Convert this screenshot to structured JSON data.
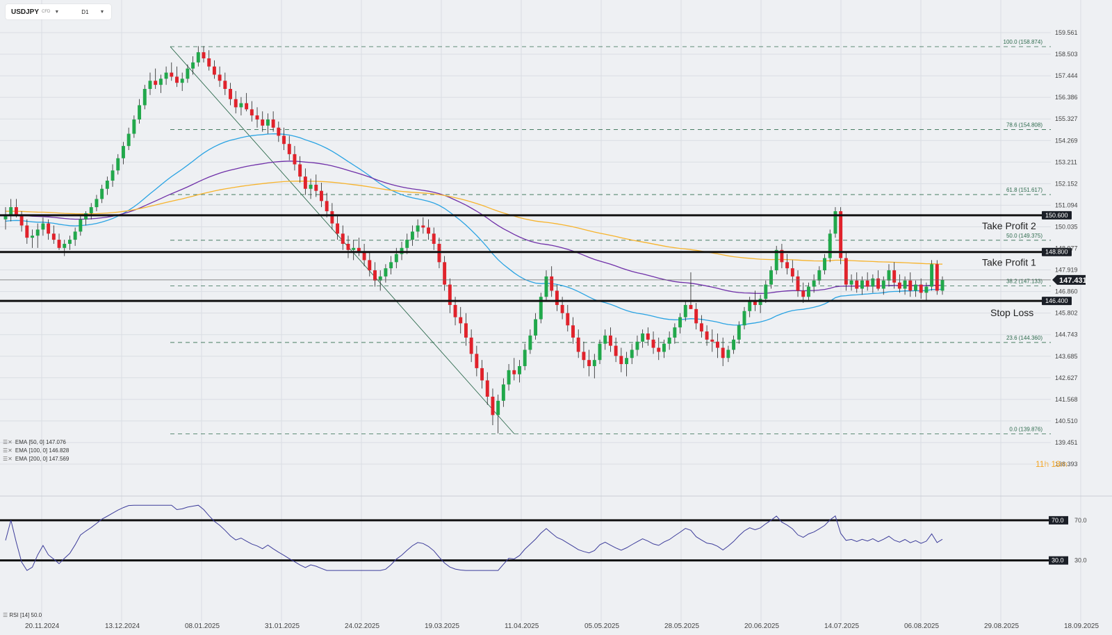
{
  "toolbar": {
    "symbol": "USDJPY",
    "instrument_type": "CFD",
    "timeframe": "D1"
  },
  "colors": {
    "bull": "#21a84b",
    "bear": "#e0222b",
    "ema50": "#29a3e3",
    "ema100": "#6f2fa8",
    "ema200": "#f7b32b",
    "rsi": "#3c3c9a",
    "level_lines": "#111111",
    "fib": "#2e6b4e",
    "price_label_bg": "#1b1f27"
  },
  "chart_data": {
    "type": "candlestick",
    "price_axis_ticks": [
      "159.561",
      "158.503",
      "157.444",
      "156.386",
      "155.327",
      "154.269",
      "153.211",
      "152.152",
      "151.094",
      "150.035",
      "148.977",
      "147.919",
      "146.860",
      "145.802",
      "144.743",
      "143.685",
      "142.627",
      "141.568",
      "140.510",
      "139.451",
      "138.393"
    ],
    "date_axis_ticks": [
      "20.11.2024",
      "13.12.2024",
      "08.01.2025",
      "31.01.2025",
      "24.02.2025",
      "19.03.2025",
      "11.04.2025",
      "05.05.2025",
      "28.05.2025",
      "20.06.2025",
      "14.07.2025",
      "06.08.2025",
      "29.08.2025",
      "18.09.2025"
    ],
    "fibonacci_levels": [
      {
        "label": "100.0 (158.874)",
        "price": 158.874
      },
      {
        "label": "78.6 (154.808)",
        "price": 154.808
      },
      {
        "label": "61.8 (151.617)",
        "price": 151.617
      },
      {
        "label": "50.0 (149.375)",
        "price": 149.375
      },
      {
        "label": "38.2 (147.133)",
        "price": 147.133
      },
      {
        "label": "23.6 (144.360)",
        "price": 144.36
      },
      {
        "label": "0.0 (139.876)",
        "price": 139.876
      }
    ],
    "horizontal_levels": [
      {
        "price": 150.6,
        "label": "150.600",
        "annotation": "Take Profit 2"
      },
      {
        "price": 148.8,
        "label": "148.800",
        "annotation": "Take Profit 1"
      },
      {
        "price": 146.4,
        "label": "146.400",
        "annotation": "Stop Loss"
      }
    ],
    "current_price": {
      "price": 147.431,
      "label": "147.431"
    },
    "indicators": [
      {
        "name": "EMA",
        "params": "[50, 0]",
        "value": "147.076"
      },
      {
        "name": "EMA",
        "params": "[100, 0]",
        "value": "146.828"
      },
      {
        "name": "EMA",
        "params": "[200, 0]",
        "value": "147.569"
      }
    ],
    "rsi": {
      "label": "RSI [14] 50.0",
      "upper": "70.0",
      "lower": "30.0"
    },
    "countdown": {
      "hours": "11",
      "hours_unit": "h",
      "minutes": "18",
      "minutes_unit": "m"
    },
    "candles_ohlc": [
      [
        150.4,
        151.0,
        149.9,
        150.6
      ],
      [
        150.6,
        151.4,
        150.3,
        151.0
      ],
      [
        151.0,
        151.4,
        150.5,
        150.6
      ],
      [
        150.6,
        150.8,
        149.8,
        150.1
      ],
      [
        150.1,
        150.4,
        149.2,
        149.5
      ],
      [
        149.5,
        149.9,
        149.0,
        149.6
      ],
      [
        149.6,
        150.2,
        149.0,
        149.9
      ],
      [
        149.9,
        150.5,
        149.6,
        150.2
      ],
      [
        150.2,
        150.4,
        149.4,
        149.7
      ],
      [
        149.7,
        150.1,
        149.2,
        149.4
      ],
      [
        149.4,
        149.7,
        148.9,
        149.0
      ],
      [
        149.0,
        149.4,
        148.6,
        149.2
      ],
      [
        149.2,
        149.6,
        148.9,
        149.4
      ],
      [
        149.4,
        150.0,
        149.1,
        149.8
      ],
      [
        149.8,
        150.6,
        149.6,
        150.4
      ],
      [
        150.4,
        150.8,
        150.1,
        150.7
      ],
      [
        150.7,
        151.2,
        150.4,
        151.0
      ],
      [
        151.0,
        151.6,
        150.8,
        151.4
      ],
      [
        151.4,
        152.1,
        151.2,
        151.9
      ],
      [
        151.9,
        152.5,
        151.6,
        152.3
      ],
      [
        152.3,
        153.1,
        152.0,
        152.8
      ],
      [
        152.8,
        153.6,
        152.6,
        153.4
      ],
      [
        153.4,
        154.2,
        153.1,
        154.0
      ],
      [
        154.0,
        154.9,
        153.8,
        154.6
      ],
      [
        154.6,
        155.5,
        154.4,
        155.3
      ],
      [
        155.3,
        156.3,
        155.1,
        156.0
      ],
      [
        156.0,
        157.0,
        155.8,
        156.8
      ],
      [
        156.8,
        157.6,
        156.5,
        157.2
      ],
      [
        157.2,
        157.8,
        156.8,
        157.0
      ],
      [
        157.0,
        157.5,
        156.6,
        157.3
      ],
      [
        157.3,
        157.9,
        157.0,
        157.6
      ],
      [
        157.6,
        158.1,
        157.2,
        157.4
      ],
      [
        157.4,
        157.9,
        156.9,
        157.1
      ],
      [
        157.1,
        157.6,
        156.7,
        157.3
      ],
      [
        157.3,
        158.0,
        157.1,
        157.8
      ],
      [
        157.8,
        158.4,
        157.5,
        158.1
      ],
      [
        158.1,
        158.9,
        157.9,
        158.6
      ],
      [
        158.6,
        158.9,
        158.1,
        158.3
      ],
      [
        158.3,
        158.7,
        157.7,
        157.9
      ],
      [
        157.9,
        158.2,
        157.3,
        157.5
      ],
      [
        157.5,
        157.9,
        156.9,
        157.2
      ],
      [
        157.2,
        157.6,
        156.5,
        156.8
      ],
      [
        156.8,
        157.1,
        156.0,
        156.3
      ],
      [
        156.3,
        156.7,
        155.6,
        155.9
      ],
      [
        155.9,
        156.4,
        155.5,
        156.1
      ],
      [
        156.1,
        156.6,
        155.7,
        155.8
      ],
      [
        155.8,
        156.2,
        155.2,
        155.5
      ],
      [
        155.5,
        155.9,
        154.9,
        155.3
      ],
      [
        155.3,
        155.7,
        154.7,
        155.0
      ],
      [
        155.0,
        155.6,
        154.6,
        155.3
      ],
      [
        155.3,
        155.7,
        154.7,
        154.9
      ],
      [
        154.9,
        155.2,
        154.2,
        154.5
      ],
      [
        154.5,
        154.9,
        153.8,
        154.1
      ],
      [
        154.1,
        154.5,
        153.3,
        153.6
      ],
      [
        153.6,
        154.0,
        152.8,
        153.1
      ],
      [
        153.1,
        153.5,
        152.2,
        152.5
      ],
      [
        152.5,
        152.9,
        151.6,
        151.9
      ],
      [
        151.9,
        152.4,
        151.4,
        152.1
      ],
      [
        152.1,
        152.6,
        151.5,
        151.8
      ],
      [
        151.8,
        152.2,
        151.0,
        151.3
      ],
      [
        151.3,
        151.7,
        150.5,
        150.8
      ],
      [
        150.8,
        151.2,
        149.9,
        150.2
      ],
      [
        150.2,
        150.6,
        149.4,
        149.7
      ],
      [
        149.7,
        150.1,
        148.9,
        149.2
      ],
      [
        149.2,
        149.6,
        148.5,
        148.9
      ],
      [
        148.9,
        149.4,
        148.4,
        149.0
      ],
      [
        149.0,
        149.5,
        148.6,
        148.8
      ],
      [
        148.8,
        149.2,
        148.1,
        148.4
      ],
      [
        148.4,
        148.8,
        147.6,
        147.9
      ],
      [
        147.9,
        148.3,
        147.1,
        147.4
      ],
      [
        147.4,
        147.9,
        146.9,
        147.6
      ],
      [
        147.6,
        148.2,
        147.3,
        148.0
      ],
      [
        148.0,
        148.6,
        147.7,
        148.3
      ],
      [
        148.3,
        149.0,
        148.0,
        148.7
      ],
      [
        148.7,
        149.3,
        148.4,
        149.0
      ],
      [
        149.0,
        149.7,
        148.7,
        149.4
      ],
      [
        149.4,
        150.1,
        149.1,
        149.8
      ],
      [
        149.8,
        150.4,
        149.5,
        150.1
      ],
      [
        150.1,
        150.5,
        149.7,
        150.0
      ],
      [
        150.0,
        150.4,
        149.4,
        149.7
      ],
      [
        149.7,
        150.0,
        148.9,
        149.2
      ],
      [
        149.2,
        149.5,
        148.0,
        148.3
      ],
      [
        148.3,
        148.6,
        146.9,
        147.2
      ],
      [
        147.2,
        147.5,
        145.8,
        146.2
      ],
      [
        146.2,
        146.6,
        145.2,
        145.6
      ],
      [
        145.6,
        146.1,
        144.8,
        145.3
      ],
      [
        145.3,
        145.8,
        144.2,
        144.6
      ],
      [
        144.6,
        145.0,
        143.4,
        143.8
      ],
      [
        143.8,
        144.2,
        142.7,
        143.1
      ],
      [
        143.1,
        143.5,
        142.1,
        142.5
      ],
      [
        142.5,
        142.9,
        141.3,
        141.7
      ],
      [
        141.7,
        142.1,
        140.3,
        140.8
      ],
      [
        140.8,
        141.8,
        139.9,
        141.5
      ],
      [
        141.5,
        142.6,
        141.2,
        142.3
      ],
      [
        142.3,
        143.3,
        142.0,
        143.0
      ],
      [
        143.0,
        143.6,
        142.5,
        142.8
      ],
      [
        142.8,
        143.5,
        142.4,
        143.2
      ],
      [
        143.2,
        144.3,
        143.0,
        144.0
      ],
      [
        144.0,
        145.0,
        143.8,
        144.7
      ],
      [
        144.7,
        145.8,
        144.5,
        145.5
      ],
      [
        145.5,
        146.8,
        145.3,
        146.6
      ],
      [
        146.6,
        147.9,
        146.4,
        147.6
      ],
      [
        147.6,
        148.1,
        146.6,
        146.9
      ],
      [
        146.9,
        147.2,
        145.9,
        146.2
      ],
      [
        146.2,
        146.6,
        145.5,
        145.8
      ],
      [
        145.8,
        146.2,
        144.9,
        145.2
      ],
      [
        145.2,
        145.6,
        144.3,
        144.6
      ],
      [
        144.6,
        145.0,
        143.6,
        143.9
      ],
      [
        143.9,
        144.4,
        143.1,
        143.5
      ],
      [
        143.5,
        144.0,
        142.7,
        143.2
      ],
      [
        143.2,
        143.8,
        142.6,
        143.5
      ],
      [
        143.5,
        144.5,
        143.3,
        144.3
      ],
      [
        144.3,
        145.0,
        144.0,
        144.7
      ],
      [
        144.7,
        145.1,
        143.9,
        144.2
      ],
      [
        144.2,
        144.6,
        143.4,
        143.7
      ],
      [
        143.7,
        144.1,
        142.9,
        143.3
      ],
      [
        143.3,
        143.9,
        142.7,
        143.6
      ],
      [
        143.6,
        144.3,
        143.3,
        144.0
      ],
      [
        144.0,
        144.7,
        143.7,
        144.4
      ],
      [
        144.4,
        145.0,
        144.1,
        144.8
      ],
      [
        144.8,
        145.1,
        144.2,
        144.5
      ],
      [
        144.5,
        144.9,
        143.8,
        144.1
      ],
      [
        144.1,
        144.6,
        143.5,
        143.9
      ],
      [
        143.9,
        144.5,
        143.6,
        144.3
      ],
      [
        144.3,
        144.9,
        144.0,
        144.6
      ],
      [
        144.6,
        145.3,
        144.3,
        145.1
      ],
      [
        145.1,
        145.8,
        144.8,
        145.6
      ],
      [
        145.6,
        146.4,
        145.4,
        146.2
      ],
      [
        146.2,
        147.8,
        146.0,
        146.0
      ],
      [
        146.0,
        146.3,
        145.0,
        145.3
      ],
      [
        145.3,
        145.7,
        144.6,
        144.9
      ],
      [
        144.9,
        145.2,
        144.2,
        144.5
      ],
      [
        144.5,
        145.0,
        143.9,
        144.4
      ],
      [
        144.4,
        144.8,
        143.6,
        144.1
      ],
      [
        144.1,
        144.6,
        143.2,
        143.6
      ],
      [
        143.6,
        144.2,
        143.4,
        144.0
      ],
      [
        144.0,
        144.7,
        143.8,
        144.5
      ],
      [
        144.5,
        145.4,
        144.3,
        145.2
      ],
      [
        145.2,
        146.1,
        145.0,
        145.9
      ],
      [
        145.9,
        146.6,
        145.6,
        146.4
      ],
      [
        146.4,
        146.9,
        145.9,
        146.2
      ],
      [
        146.2,
        146.7,
        145.8,
        146.5
      ],
      [
        146.5,
        147.4,
        146.3,
        147.2
      ],
      [
        147.2,
        148.1,
        147.0,
        147.9
      ],
      [
        147.9,
        149.1,
        147.7,
        148.9
      ],
      [
        148.9,
        149.2,
        148.0,
        148.3
      ],
      [
        148.3,
        148.7,
        147.7,
        148.0
      ],
      [
        148.0,
        148.4,
        147.3,
        147.6
      ],
      [
        147.6,
        147.9,
        146.6,
        146.9
      ],
      [
        146.9,
        147.3,
        146.3,
        146.6
      ],
      [
        146.6,
        147.3,
        146.4,
        147.1
      ],
      [
        147.1,
        147.7,
        146.8,
        147.4
      ],
      [
        147.4,
        148.1,
        147.2,
        147.9
      ],
      [
        147.9,
        148.7,
        147.7,
        148.5
      ],
      [
        148.5,
        149.9,
        148.3,
        149.7
      ],
      [
        149.7,
        151.0,
        149.5,
        150.8
      ],
      [
        150.8,
        151.0,
        148.2,
        148.5
      ],
      [
        148.5,
        148.8,
        146.9,
        147.2
      ],
      [
        147.2,
        147.7,
        146.9,
        147.4
      ],
      [
        147.4,
        147.8,
        146.8,
        147.0
      ],
      [
        147.0,
        147.6,
        146.7,
        147.4
      ],
      [
        147.4,
        147.8,
        146.9,
        147.1
      ],
      [
        147.1,
        147.7,
        146.8,
        147.5
      ],
      [
        147.5,
        147.9,
        146.9,
        147.0
      ],
      [
        147.0,
        147.6,
        146.7,
        147.4
      ],
      [
        147.4,
        148.2,
        147.1,
        147.9
      ],
      [
        147.9,
        148.3,
        147.0,
        147.3
      ],
      [
        147.3,
        147.7,
        146.8,
        147.0
      ],
      [
        147.0,
        147.6,
        146.7,
        147.4
      ],
      [
        147.4,
        147.8,
        146.6,
        146.9
      ],
      [
        146.9,
        147.4,
        146.6,
        147.2
      ],
      [
        147.2,
        147.5,
        146.5,
        146.8
      ],
      [
        146.8,
        147.3,
        146.4,
        147.1
      ],
      [
        147.1,
        148.4,
        146.9,
        148.2
      ],
      [
        148.2,
        148.4,
        146.7,
        146.9
      ],
      [
        146.9,
        147.6,
        146.7,
        147.43
      ]
    ]
  }
}
